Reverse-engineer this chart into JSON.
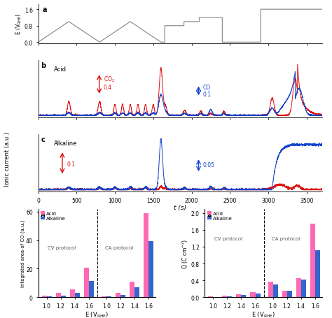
{
  "panel_a": {
    "t": [
      0,
      400,
      800,
      1200,
      1600,
      1650,
      1650,
      1900,
      1900,
      2100,
      2100,
      2400,
      2400,
      2900,
      2900,
      3700
    ],
    "v": [
      0.0,
      1.0,
      0.0,
      1.0,
      0.0,
      0.0,
      0.8,
      0.8,
      1.0,
      1.0,
      1.2,
      1.2,
      0.0,
      0.0,
      1.6,
      1.6
    ],
    "color": "#909090",
    "ylabel": "E (V$_\\mathrm{RHE}$)",
    "yticks": [
      0.0,
      0.8,
      1.6
    ],
    "ytick_labels": [
      "0.0",
      "0.8",
      "1.6"
    ],
    "xlim": [
      0,
      3700
    ],
    "ylim": [
      -0.05,
      1.85
    ]
  },
  "panel_d": {
    "cv_acid": [
      1.0,
      3.2,
      5.5,
      20.5
    ],
    "cv_alkaline": [
      0.6,
      1.2,
      3.2,
      11.5
    ],
    "ca_acid": [
      0.8,
      3.2,
      11.0,
      59.0
    ],
    "ca_alkaline": [
      0.5,
      1.5,
      7.0,
      39.5
    ],
    "ylabel": "Integrated area of CO (a.u.)",
    "xlabel": "E (V$_\\mathrm{RHE}$)",
    "ylim": [
      0,
      62
    ],
    "yticks": [
      0,
      20,
      40,
      60
    ],
    "acid_color": "#FF69B4",
    "alkaline_color": "#3366CC"
  },
  "panel_e": {
    "cv_acid": [
      0.02,
      0.04,
      0.08,
      0.12
    ],
    "cv_alkaline": [
      0.01,
      0.03,
      0.055,
      0.095
    ],
    "ca_acid": [
      0.37,
      0.16,
      0.46,
      1.75
    ],
    "ca_alkaline": [
      0.31,
      0.16,
      0.42,
      1.12
    ],
    "ylabel": "Q (C cm$^{-2}$)",
    "xlabel": "E (V$_\\mathrm{RHE}$)",
    "ylim": [
      0,
      2.1
    ],
    "yticks": [
      0.0,
      0.4,
      0.8,
      1.2,
      1.6,
      2.0
    ],
    "acid_color": "#FF69B4",
    "alkaline_color": "#3366CC"
  },
  "t_label": "t (s)",
  "t_xlim": [
    0,
    3700
  ],
  "t_xticks": [
    0,
    500,
    1000,
    1500,
    2000,
    2500,
    3000,
    3500
  ],
  "red_color": "#DD1111",
  "blue_color": "#1144CC"
}
